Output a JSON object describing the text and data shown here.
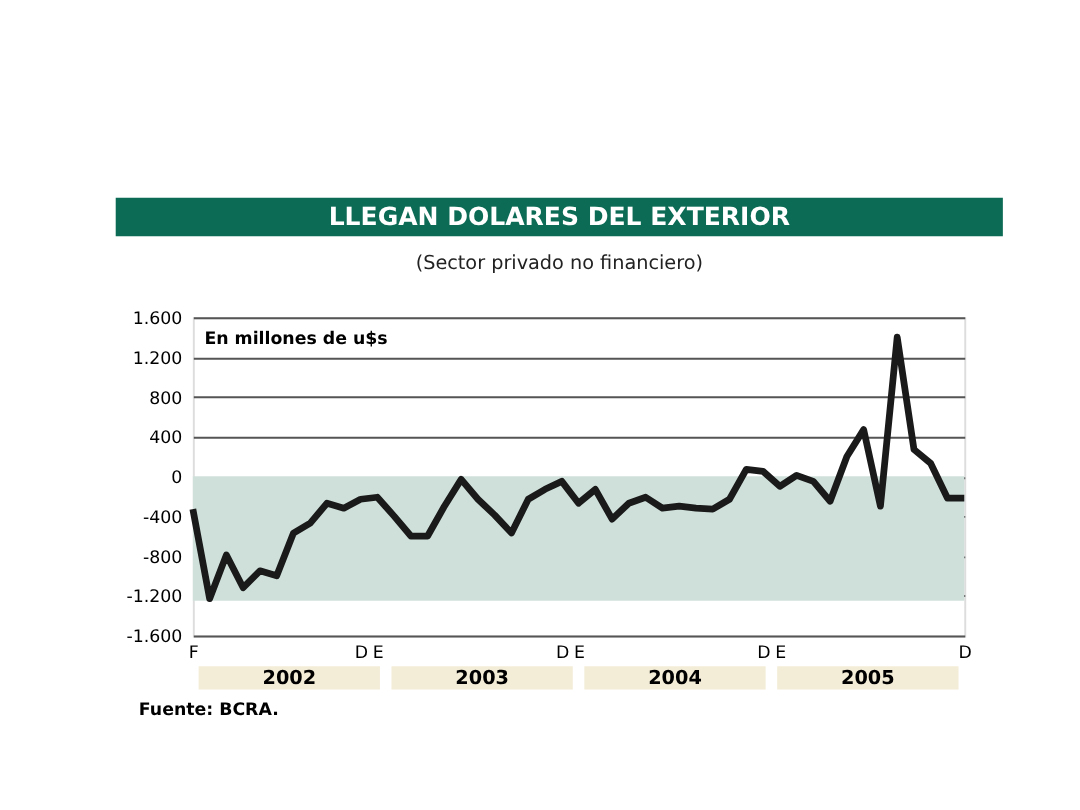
{
  "chart_data": {
    "type": "line",
    "title": "LLEGAN DOLARES DEL EXTERIOR",
    "subtitle": "(Sector privado no financiero)",
    "ylabel": "En millones de u$s",
    "categories": [
      "F",
      null,
      null,
      null,
      null,
      null,
      null,
      null,
      null,
      null,
      "D",
      "E",
      null,
      null,
      null,
      null,
      null,
      null,
      null,
      null,
      null,
      null,
      "D",
      "E",
      null,
      null,
      null,
      null,
      null,
      null,
      null,
      null,
      null,
      null,
      "D",
      "E",
      null,
      null,
      null,
      null,
      null,
      null,
      null,
      null,
      null,
      null,
      "D"
    ],
    "series": [
      {
        "color": "#1a1a1a",
        "values": [
          -330,
          -1230,
          -790,
          -1120,
          -950,
          -1000,
          -570,
          -470,
          -270,
          -320,
          -230,
          -210,
          -400,
          -600,
          -600,
          -300,
          -30,
          -230,
          -390,
          -570,
          -230,
          -130,
          -50,
          -270,
          -130,
          -430,
          -270,
          -210,
          -320,
          -300,
          -320,
          -330,
          -230,
          70,
          50,
          -100,
          10,
          -50,
          -250,
          200,
          470,
          -300,
          1400,
          270,
          130,
          -220,
          -220
        ]
      }
    ],
    "ylim": [
      -1600,
      1600
    ],
    "yticks": [
      {
        "value": 1600,
        "label": "1.600"
      },
      {
        "value": 1200,
        "label": "1.200"
      },
      800,
      400,
      0,
      -400,
      -800,
      {
        "value": -1200,
        "label": "-1.200"
      },
      {
        "value": -1600,
        "label": "-1.600"
      }
    ],
    "bands": [
      {
        "axis": "y",
        "from": -1250,
        "to": 0,
        "color": "#cfe0da"
      }
    ],
    "grid": "y",
    "legend": false,
    "marker": "none",
    "line_style": "solid",
    "annotations": [
      "2002",
      "2003",
      "2004",
      "2005",
      "Fuente: BCRA."
    ]
  }
}
